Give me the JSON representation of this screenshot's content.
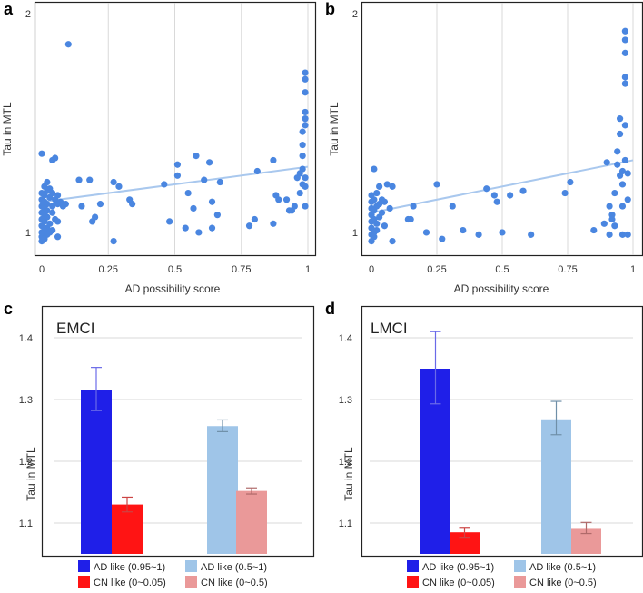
{
  "figure": {
    "panels": [
      "a",
      "b",
      "c",
      "d"
    ]
  },
  "chart_data": [
    {
      "id": "a",
      "type": "scatter",
      "panel_label": "a",
      "xlabel": "AD possibility score",
      "ylabel": "Tau in MTL",
      "xlim": [
        0,
        1
      ],
      "ylim": [
        0.95,
        2.0
      ],
      "xticks": [
        "0",
        "0.25",
        "0.5",
        "0.75",
        "1"
      ],
      "xtick_values": [
        0,
        0.25,
        0.5,
        0.75,
        1
      ],
      "yticks": [
        "1",
        "2"
      ],
      "ytick_values": [
        1,
        2
      ],
      "grid": true,
      "point_color": "#4a86e0",
      "trend_color": "#a9c8ee",
      "trendline": {
        "x": [
          0,
          1
        ],
        "y": [
          1.14,
          1.3
        ]
      },
      "points": [
        [
          0.0,
          0.96
        ],
        [
          0.0,
          0.98
        ],
        [
          0.0,
          1.0
        ],
        [
          0.0,
          1.03
        ],
        [
          0.0,
          1.06
        ],
        [
          0.0,
          1.09
        ],
        [
          0.0,
          1.12
        ],
        [
          0.0,
          1.15
        ],
        [
          0.0,
          1.18
        ],
        [
          0.0,
          1.36
        ],
        [
          0.01,
          0.97
        ],
        [
          0.01,
          1.01
        ],
        [
          0.01,
          1.05
        ],
        [
          0.01,
          1.08
        ],
        [
          0.01,
          1.11
        ],
        [
          0.01,
          1.14
        ],
        [
          0.01,
          1.17
        ],
        [
          0.01,
          1.21
        ],
        [
          0.02,
          0.99
        ],
        [
          0.02,
          1.02
        ],
        [
          0.02,
          1.07
        ],
        [
          0.02,
          1.1
        ],
        [
          0.02,
          1.13
        ],
        [
          0.02,
          1.19
        ],
        [
          0.02,
          1.23
        ],
        [
          0.03,
          1.0
        ],
        [
          0.03,
          1.04
        ],
        [
          0.03,
          1.16
        ],
        [
          0.03,
          1.2
        ],
        [
          0.04,
          1.01
        ],
        [
          0.04,
          1.09
        ],
        [
          0.04,
          1.12
        ],
        [
          0.04,
          1.18
        ],
        [
          0.04,
          1.33
        ],
        [
          0.05,
          1.06
        ],
        [
          0.05,
          1.15
        ],
        [
          0.05,
          1.34
        ],
        [
          0.06,
          0.98
        ],
        [
          0.06,
          1.05
        ],
        [
          0.06,
          1.13
        ],
        [
          0.06,
          1.17
        ],
        [
          0.07,
          1.14
        ],
        [
          0.08,
          1.12
        ],
        [
          0.09,
          1.13
        ],
        [
          0.1,
          1.86
        ],
        [
          0.14,
          1.24
        ],
        [
          0.15,
          1.12
        ],
        [
          0.18,
          1.24
        ],
        [
          0.19,
          1.05
        ],
        [
          0.2,
          1.07
        ],
        [
          0.22,
          1.13
        ],
        [
          0.27,
          0.96
        ],
        [
          0.27,
          1.23
        ],
        [
          0.29,
          1.21
        ],
        [
          0.33,
          1.15
        ],
        [
          0.34,
          1.13
        ],
        [
          0.46,
          1.22
        ],
        [
          0.48,
          1.05
        ],
        [
          0.51,
          1.31
        ],
        [
          0.51,
          1.26
        ],
        [
          0.54,
          1.02
        ],
        [
          0.55,
          1.18
        ],
        [
          0.57,
          1.11
        ],
        [
          0.58,
          1.35
        ],
        [
          0.59,
          1.0
        ],
        [
          0.61,
          1.24
        ],
        [
          0.63,
          1.32
        ],
        [
          0.64,
          1.02
        ],
        [
          0.64,
          1.14
        ],
        [
          0.66,
          1.08
        ],
        [
          0.67,
          1.23
        ],
        [
          0.78,
          1.03
        ],
        [
          0.8,
          1.06
        ],
        [
          0.81,
          1.28
        ],
        [
          0.87,
          1.33
        ],
        [
          0.87,
          1.04
        ],
        [
          0.88,
          1.17
        ],
        [
          0.89,
          1.15
        ],
        [
          0.92,
          1.15
        ],
        [
          0.93,
          1.1
        ],
        [
          0.94,
          1.1
        ],
        [
          0.95,
          1.12
        ],
        [
          0.96,
          1.25
        ],
        [
          0.97,
          1.27
        ],
        [
          0.97,
          1.18
        ],
        [
          0.98,
          1.22
        ],
        [
          0.98,
          1.29
        ],
        [
          0.98,
          1.35
        ],
        [
          0.98,
          1.4
        ],
        [
          0.98,
          1.46
        ],
        [
          0.99,
          1.49
        ],
        [
          0.99,
          1.52
        ],
        [
          0.99,
          1.55
        ],
        [
          0.99,
          1.64
        ],
        [
          0.99,
          1.7
        ],
        [
          0.99,
          1.73
        ],
        [
          0.99,
          1.25
        ],
        [
          0.99,
          1.21
        ],
        [
          0.99,
          1.12
        ]
      ]
    },
    {
      "id": "b",
      "type": "scatter",
      "panel_label": "b",
      "xlabel": "AD possibility score",
      "ylabel": "Tau in MTL",
      "xlim": [
        0,
        1
      ],
      "ylim": [
        0.95,
        2.0
      ],
      "xticks": [
        "0",
        "0.25",
        "0.5",
        "0.75",
        "1"
      ],
      "xtick_values": [
        0,
        0.25,
        0.5,
        0.75,
        1
      ],
      "yticks": [
        "1",
        "2"
      ],
      "ytick_values": [
        1,
        2
      ],
      "grid": true,
      "point_color": "#4a86e0",
      "trend_color": "#a9c8ee",
      "trendline": {
        "x": [
          0,
          1
        ],
        "y": [
          1.09,
          1.33
        ]
      },
      "points": [
        [
          0.0,
          0.96
        ],
        [
          0.0,
          0.99
        ],
        [
          0.0,
          1.02
        ],
        [
          0.0,
          1.05
        ],
        [
          0.0,
          1.08
        ],
        [
          0.0,
          1.11
        ],
        [
          0.0,
          1.14
        ],
        [
          0.0,
          1.17
        ],
        [
          0.01,
          0.98
        ],
        [
          0.01,
          1.0
        ],
        [
          0.01,
          1.06
        ],
        [
          0.01,
          1.1
        ],
        [
          0.01,
          1.15
        ],
        [
          0.01,
          1.29
        ],
        [
          0.02,
          1.01
        ],
        [
          0.02,
          1.04
        ],
        [
          0.02,
          1.12
        ],
        [
          0.02,
          1.18
        ],
        [
          0.03,
          1.07
        ],
        [
          0.03,
          1.13
        ],
        [
          0.03,
          1.21
        ],
        [
          0.04,
          1.09
        ],
        [
          0.04,
          1.15
        ],
        [
          0.05,
          1.03
        ],
        [
          0.05,
          1.14
        ],
        [
          0.06,
          1.22
        ],
        [
          0.07,
          1.11
        ],
        [
          0.08,
          0.96
        ],
        [
          0.08,
          1.21
        ],
        [
          0.14,
          1.06
        ],
        [
          0.15,
          1.06
        ],
        [
          0.16,
          1.12
        ],
        [
          0.21,
          1.0
        ],
        [
          0.25,
          1.22
        ],
        [
          0.27,
          0.97
        ],
        [
          0.31,
          1.12
        ],
        [
          0.35,
          1.01
        ],
        [
          0.41,
          0.99
        ],
        [
          0.44,
          1.2
        ],
        [
          0.47,
          1.17
        ],
        [
          0.48,
          1.14
        ],
        [
          0.5,
          1.0
        ],
        [
          0.53,
          1.17
        ],
        [
          0.58,
          1.19
        ],
        [
          0.61,
          0.99
        ],
        [
          0.74,
          1.18
        ],
        [
          0.76,
          1.23
        ],
        [
          0.85,
          1.01
        ],
        [
          0.89,
          1.04
        ],
        [
          0.9,
          1.32
        ],
        [
          0.91,
          1.12
        ],
        [
          0.91,
          0.99
        ],
        [
          0.92,
          1.08
        ],
        [
          0.92,
          1.06
        ],
        [
          0.93,
          1.03
        ],
        [
          0.93,
          1.18
        ],
        [
          0.94,
          1.31
        ],
        [
          0.94,
          1.37
        ],
        [
          0.95,
          1.26
        ],
        [
          0.95,
          1.45
        ],
        [
          0.95,
          1.52
        ],
        [
          0.96,
          1.22
        ],
        [
          0.96,
          1.28
        ],
        [
          0.96,
          1.12
        ],
        [
          0.96,
          0.99
        ],
        [
          0.97,
          1.33
        ],
        [
          0.97,
          1.49
        ],
        [
          0.97,
          1.68
        ],
        [
          0.97,
          1.71
        ],
        [
          0.97,
          1.82
        ],
        [
          0.97,
          1.88
        ],
        [
          0.97,
          1.92
        ],
        [
          0.98,
          1.27
        ],
        [
          0.98,
          0.99
        ],
        [
          0.98,
          1.15
        ]
      ]
    },
    {
      "id": "c",
      "type": "bar",
      "panel_label": "c",
      "title": "EMCI",
      "xlabel": "",
      "ylabel": "Tau in MTL",
      "ylim": [
        1.05,
        1.45
      ],
      "yticks": [
        "1.1",
        "1.2",
        "1.3",
        "1.4"
      ],
      "ytick_values": [
        1.1,
        1.2,
        1.3,
        1.4
      ],
      "grid": true,
      "bars": [
        {
          "name": "AD like (0.95~1)",
          "value": 1.315,
          "err_low": 1.282,
          "err_high": 1.352,
          "color": "#1f1fe8",
          "err_color": "#6a6ae8"
        },
        {
          "name": "CN like (0~0.05)",
          "value": 1.13,
          "err_low": 1.118,
          "err_high": 1.142,
          "color": "#ff1414",
          "err_color": "#cc4444"
        },
        {
          "name": "AD like (0.5~1)",
          "value": 1.257,
          "err_low": 1.248,
          "err_high": 1.267,
          "color": "#9fc5e8",
          "err_color": "#6f8fa8"
        },
        {
          "name": "CN like (0~0.5)",
          "value": 1.152,
          "err_low": 1.147,
          "err_high": 1.157,
          "color": "#ea9999",
          "err_color": "#b06a6a"
        }
      ],
      "legend": [
        "AD like (0.95~1)",
        "AD like (0.5~1)",
        "CN like (0~0.05)",
        "CN like (0~0.5)"
      ]
    },
    {
      "id": "d",
      "type": "bar",
      "panel_label": "d",
      "title": "LMCI",
      "xlabel": "",
      "ylabel": "Tau in MTL",
      "ylim": [
        1.05,
        1.45
      ],
      "yticks": [
        "1.1",
        "1.2",
        "1.3",
        "1.4"
      ],
      "ytick_values": [
        1.1,
        1.2,
        1.3,
        1.4
      ],
      "grid": true,
      "bars": [
        {
          "name": "AD like (0.95~1)",
          "value": 1.35,
          "err_low": 1.293,
          "err_high": 1.41,
          "color": "#1f1fe8",
          "err_color": "#6a6ae8"
        },
        {
          "name": "CN like (0~0.05)",
          "value": 1.085,
          "err_low": 1.077,
          "err_high": 1.093,
          "color": "#ff1414",
          "err_color": "#cc4444"
        },
        {
          "name": "AD like (0.5~1)",
          "value": 1.268,
          "err_low": 1.243,
          "err_high": 1.297,
          "color": "#9fc5e8",
          "err_color": "#6f8fa8"
        },
        {
          "name": "CN like (0~0.5)",
          "value": 1.092,
          "err_low": 1.083,
          "err_high": 1.101,
          "color": "#ea9999",
          "err_color": "#b06a6a"
        }
      ],
      "legend": [
        "AD like (0.95~1)",
        "AD like (0.5~1)",
        "CN like (0~0.05)",
        "CN like (0~0.5)"
      ]
    }
  ]
}
